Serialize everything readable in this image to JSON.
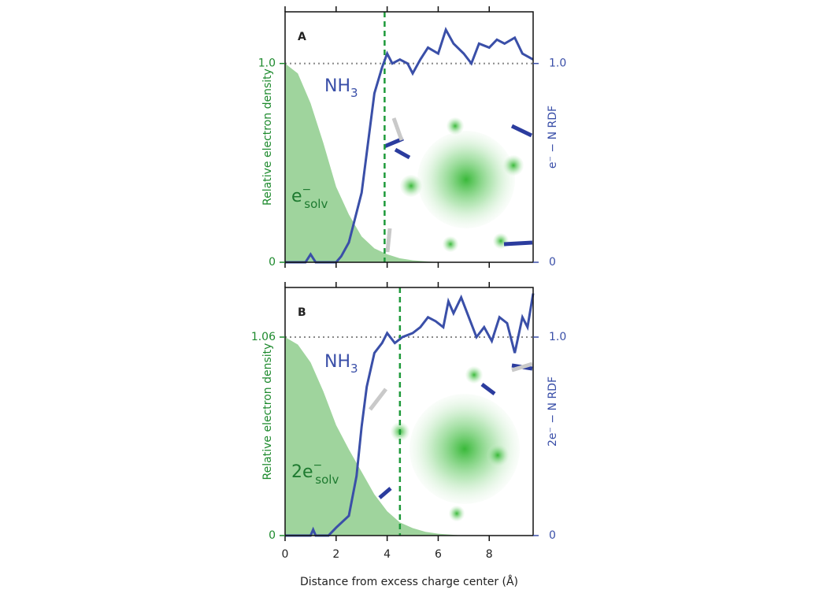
{
  "chart_data": [
    {
      "type": "line",
      "panel_label": "A",
      "ylabel": "Relative electron density",
      "y2label": "e⁻ − N RDF",
      "xlim": [
        0,
        9.72
      ],
      "xticks": [
        0,
        2,
        4,
        6,
        8
      ],
      "ylim": [
        0,
        1.26
      ],
      "yticks": [
        0,
        {
          "value": 1,
          "label": "1.0"
        }
      ],
      "y2lim": [
        0,
        1.26
      ],
      "y2ticks": [
        0,
        {
          "value": 1,
          "label": "1.0"
        }
      ],
      "vline": {
        "x": 3.9,
        "color": "#1e9a3a"
      },
      "hline": {
        "y": 1,
        "color": "#888888"
      },
      "annotations": [
        {
          "base": "NH",
          "sub": "3",
          "color": "#3a4fa8"
        },
        {
          "base": "e",
          "sup": "−",
          "sub": "solv",
          "color": "#1e7a30"
        }
      ],
      "series": [
        {
          "name": "density",
          "color": "#9fd49d",
          "fill": true,
          "x": [
            0,
            0.5,
            1,
            1.5,
            2,
            2.5,
            3,
            3.5,
            4,
            4.5,
            5,
            6,
            7,
            8,
            9,
            9.72
          ],
          "values": [
            1.0,
            0.95,
            0.8,
            0.6,
            0.38,
            0.24,
            0.13,
            0.07,
            0.04,
            0.02,
            0.01,
            0,
            0,
            0,
            0,
            0
          ]
        },
        {
          "name": "rdf",
          "color": "#3a4fa8",
          "axis": "y2",
          "x": [
            0,
            0.8,
            1.0,
            1.2,
            2.0,
            2.2,
            2.5,
            3.0,
            3.2,
            3.5,
            3.8,
            4.0,
            4.2,
            4.5,
            4.8,
            5.0,
            5.3,
            5.6,
            6.0,
            6.3,
            6.6,
            7.0,
            7.3,
            7.6,
            8.0,
            8.3,
            8.6,
            9.0,
            9.3,
            9.72
          ],
          "values": [
            0,
            0,
            0.04,
            0,
            0,
            0.03,
            0.1,
            0.35,
            0.55,
            0.85,
            0.98,
            1.05,
            1.0,
            1.02,
            1.0,
            0.95,
            1.02,
            1.08,
            1.05,
            1.17,
            1.1,
            1.05,
            1.0,
            1.1,
            1.08,
            1.12,
            1.1,
            1.13,
            1.05,
            1.02
          ]
        }
      ]
    },
    {
      "type": "line",
      "panel_label": "B",
      "ylabel": "Relative electron density",
      "y2label": "2e⁻ − N RDF",
      "xlabel": "Distance from excess charge center (Å)",
      "xlim": [
        0,
        9.72
      ],
      "xticks": [
        0,
        2,
        4,
        6,
        8
      ],
      "ylim": [
        0,
        1.325
      ],
      "yticks": [
        0,
        1.06
      ],
      "y2lim": [
        0,
        1.25
      ],
      "y2ticks": [
        0,
        {
          "value": 1,
          "label": "1.0"
        }
      ],
      "vline": {
        "x": 4.5,
        "color": "#1e9a3a"
      },
      "hline": {
        "y": 1.06,
        "color": "#888888"
      },
      "annotations": [
        {
          "base": "NH",
          "sub": "3",
          "color": "#3a4fa8"
        },
        {
          "base": "2e",
          "sup": "−",
          "sub": "solv",
          "color": "#1e7a30"
        }
      ],
      "series": [
        {
          "name": "density",
          "color": "#9fd49d",
          "fill": true,
          "x": [
            0,
            0.5,
            1,
            1.5,
            2,
            2.5,
            3,
            3.5,
            4,
            4.5,
            5,
            5.5,
            6,
            7,
            8,
            9,
            9.72
          ],
          "values": [
            1.06,
            1.02,
            0.925,
            0.77,
            0.59,
            0.46,
            0.34,
            0.22,
            0.13,
            0.07,
            0.04,
            0.02,
            0.01,
            0,
            0,
            0,
            0
          ]
        },
        {
          "name": "rdf",
          "color": "#3a4fa8",
          "axis": "y2",
          "x": [
            0,
            1.0,
            1.1,
            1.2,
            1.7,
            2.0,
            2.5,
            2.8,
            3.0,
            3.2,
            3.5,
            3.8,
            4.0,
            4.3,
            4.6,
            5.0,
            5.3,
            5.6,
            5.9,
            6.2,
            6.4,
            6.6,
            6.9,
            7.2,
            7.5,
            7.8,
            8.1,
            8.4,
            8.7,
            9.0,
            9.3,
            9.5,
            9.72
          ],
          "values": [
            0,
            0,
            0.03,
            0,
            0,
            0.04,
            0.1,
            0.3,
            0.55,
            0.75,
            0.92,
            0.97,
            1.02,
            0.97,
            1.0,
            1.02,
            1.05,
            1.1,
            1.08,
            1.05,
            1.18,
            1.12,
            1.2,
            1.1,
            1.0,
            1.05,
            0.98,
            1.1,
            1.07,
            0.92,
            1.1,
            1.05,
            1.22
          ]
        }
      ]
    }
  ]
}
